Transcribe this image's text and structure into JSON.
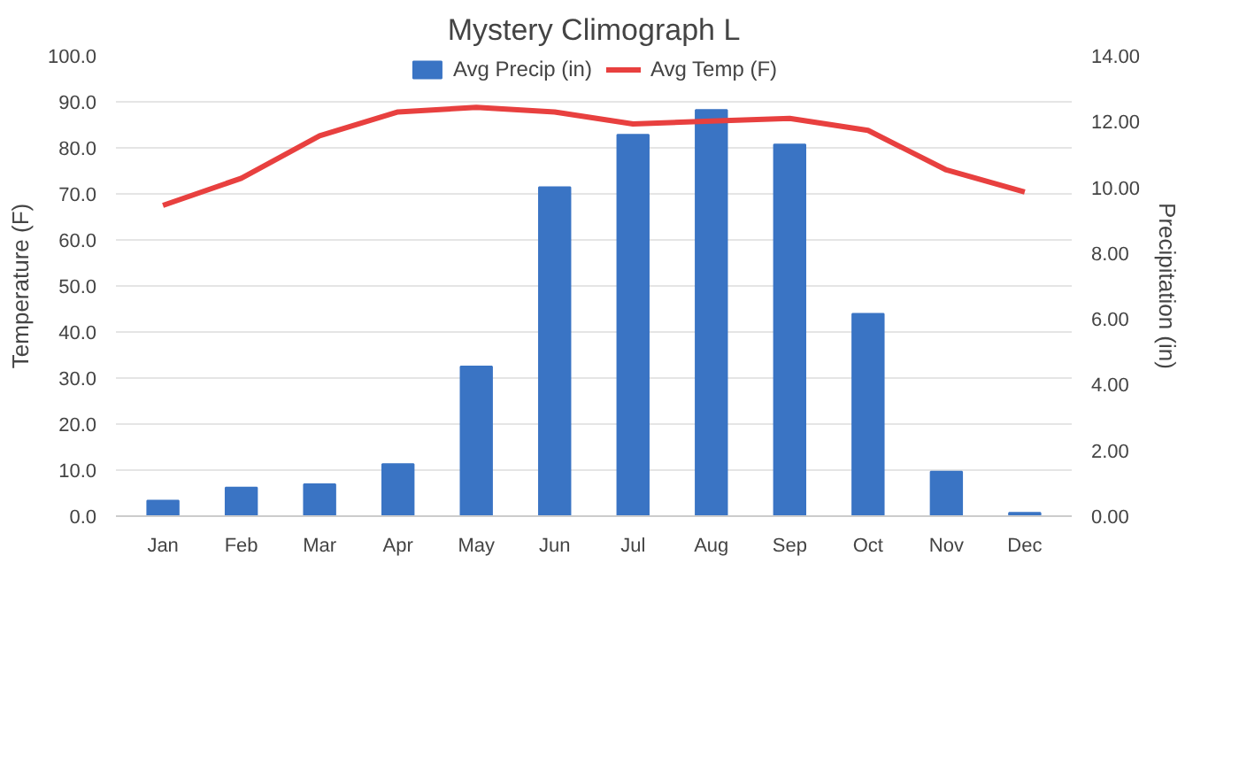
{
  "chart_data": {
    "type": "bar",
    "title": "Mystery Climograph L",
    "categories": [
      "Jan",
      "Feb",
      "Mar",
      "Apr",
      "May",
      "Jun",
      "Jul",
      "Aug",
      "Sep",
      "Oct",
      "Nov",
      "Dec"
    ],
    "series": [
      {
        "name": "Avg Precip (in)",
        "axis": "y2",
        "color": "#3a74c4",
        "values": [
          0.47,
          0.87,
          0.97,
          1.58,
          4.55,
          10.0,
          11.6,
          12.35,
          11.3,
          6.15,
          1.35,
          0.1
        ]
      },
      {
        "name": "Avg Temp (F)",
        "type": "line",
        "color": "#e8403f",
        "values": [
          67.5,
          73.4,
          82.6,
          87.8,
          88.8,
          87.8,
          85.2,
          85.8,
          86.4,
          83.8,
          75.2,
          70.4
        ]
      }
    ],
    "ylabel": "Temperature (F)",
    "y2label": "Precipitation (in)",
    "ylim": [
      0,
      100
    ],
    "yticks": [
      {
        "value": 0,
        "label": "0.0"
      },
      {
        "value": 10,
        "label": "10.0"
      },
      {
        "value": 20,
        "label": "20.0"
      },
      {
        "value": 30,
        "label": "30.0"
      },
      {
        "value": 40,
        "label": "40.0"
      },
      {
        "value": 50,
        "label": "50.0"
      },
      {
        "value": 60,
        "label": "60.0"
      },
      {
        "value": 70,
        "label": "70.0"
      },
      {
        "value": 80,
        "label": "80.0"
      },
      {
        "value": 90,
        "label": "90.0"
      },
      {
        "value": 100,
        "label": "100.0"
      }
    ],
    "y2lim": [
      0,
      14
    ],
    "y2ticks": [
      {
        "value": 0,
        "label": "0.00"
      },
      {
        "value": 2,
        "label": "2.00"
      },
      {
        "value": 4,
        "label": "4.00"
      },
      {
        "value": 6,
        "label": "6.00"
      },
      {
        "value": 8,
        "label": "8.00"
      },
      {
        "value": 10,
        "label": "10.00"
      },
      {
        "value": 12,
        "label": "12.00"
      },
      {
        "value": 14,
        "label": "14.00"
      }
    ],
    "grid": "y",
    "legend": "top"
  }
}
